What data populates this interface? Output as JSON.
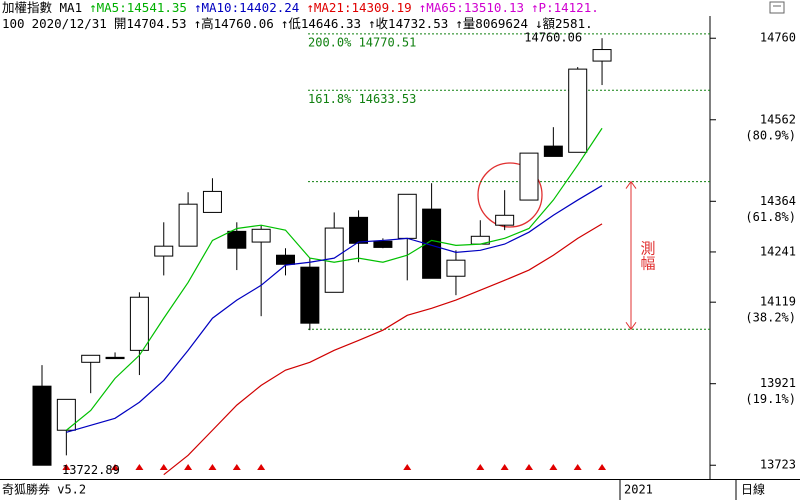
{
  "header": {
    "line1": [
      {
        "text": "加權指數 MA1",
        "color": "#000000"
      },
      {
        "text": "↑MA5:14541.35",
        "color": "#00b000"
      },
      {
        "text": "↑MA10:14402.24",
        "color": "#0000c0"
      },
      {
        "text": "↑MA21:14309.19",
        "color": "#e00000"
      },
      {
        "text": "↑MA65:13510.13",
        "color": "#d000d0"
      },
      {
        "text": "↑P:14121.",
        "color": "#d000d0"
      }
    ],
    "line2": [
      "100",
      "2020/12/31",
      "開14704.53",
      "↑高14760.06",
      "↑低14646.33",
      "↑收14732.53",
      "↑量8069624",
      "↓額2581."
    ]
  },
  "footer": {
    "app": "奇狐勝券 v5.2",
    "year": "2021",
    "period": "日線"
  },
  "chart_data": {
    "type": "candlestick",
    "open": [
      13915,
      13808,
      13973,
      13985,
      14002,
      14231,
      14255,
      14337,
      14291,
      14265,
      14233,
      14204,
      14143,
      14325,
      14267,
      14274,
      14345,
      14182,
      14260,
      14306,
      14367,
      14498,
      14483,
      14704.53
    ],
    "high": [
      13966,
      13883,
      13990,
      13997,
      14143,
      14313,
      14386,
      14420,
      14313,
      14306,
      14250,
      14226,
      14337,
      14342,
      14274,
      14381,
      14408,
      14245,
      14318,
      14391,
      14481,
      14544,
      14690,
      14760.06
    ],
    "low": [
      13722.89,
      13747,
      13898,
      13982,
      13942,
      14184,
      14255,
      14337,
      14197,
      14085,
      14184,
      14051,
      14143,
      14216,
      14250,
      14172,
      14177,
      14136,
      14260,
      14294,
      14367,
      14473,
      14483,
      14646.33
    ],
    "close": [
      13723,
      13883,
      13990,
      13982,
      14131,
      14255,
      14357,
      14388,
      14250,
      14296,
      14211,
      14068,
      14299,
      14262,
      14252,
      14381,
      14177,
      14221,
      14279,
      14330,
      14481,
      14473,
      14685,
      14732.53
    ],
    "up_color": "#ffffff",
    "down_color": "#000000",
    "overlays": [
      {
        "color": "#00c000",
        "values": [
          null,
          13808,
          13856,
          13934,
          13990,
          14080,
          14167,
          14269,
          14298,
          14306,
          14294,
          14226,
          14216,
          14226,
          14216,
          14233,
          14269,
          14257,
          14260,
          14274,
          14298,
          14367,
          14452,
          14541.35
        ]
      },
      {
        "color": "#0000c0",
        "values": [
          null,
          13803,
          13820,
          13837,
          13876,
          13929,
          14002,
          14080,
          14124,
          14160,
          14209,
          14216,
          14226,
          14265,
          14269,
          14274,
          14257,
          14240,
          14245,
          14260,
          14289,
          14330,
          14367,
          14402.24
        ]
      },
      {
        "color": "#d00000",
        "values": [
          null,
          null,
          null,
          null,
          null,
          13700,
          13747,
          13808,
          13869,
          13917,
          13954,
          13973,
          14002,
          14026,
          14051,
          14087,
          14104,
          14124,
          14148,
          14172,
          14197,
          14233,
          14274,
          14309.19
        ]
      }
    ],
    "ylim": [
      13692,
      14814
    ],
    "yticks": [
      14760,
      14562,
      14364,
      14241,
      14119,
      13921,
      13723
    ],
    "ytick_notes": [
      null,
      "(80.9%)",
      "(61.8%)",
      null,
      "(38.2%)",
      "(19.1%)",
      null
    ],
    "levels": [
      {
        "label": "200.0% 14770.51",
        "value": 14770.51
      },
      {
        "label": "161.8% 14633.53",
        "value": 14633.53
      }
    ],
    "level_color": "#108010",
    "measure": {
      "label": "測幅",
      "from": 14053.3,
      "to": 14411.9,
      "color": "#e03030"
    },
    "signal_indices": [
      1,
      3,
      4,
      5,
      6,
      7,
      8,
      9,
      15,
      18,
      19,
      20,
      21,
      22,
      23
    ],
    "signal_color": "#e00000",
    "max_label": 14760.06,
    "min_label": 13722.89
  }
}
